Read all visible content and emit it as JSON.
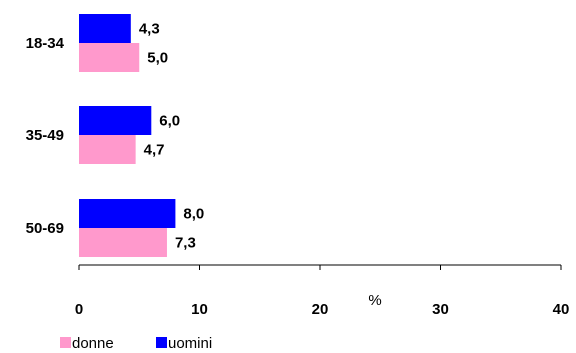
{
  "chart_data": {
    "type": "bar",
    "orientation": "horizontal",
    "categories": [
      "18-34",
      "35-49",
      "50-69"
    ],
    "series": [
      {
        "name": "uomini",
        "color": "#0000ff",
        "values": [
          4.3,
          6.0,
          8.0
        ],
        "labels": [
          "4,3",
          "6,0",
          "8,0"
        ]
      },
      {
        "name": "donne",
        "color": "#ff99cc",
        "values": [
          5.0,
          4.7,
          7.3
        ],
        "labels": [
          "5,0",
          "4,7",
          "7,3"
        ]
      }
    ],
    "xlim": [
      0,
      40
    ],
    "xticks": [
      0,
      10,
      20,
      30,
      40
    ],
    "xtick_labels": [
      "0",
      "10",
      "20",
      "30",
      "40"
    ],
    "xlabel": "%",
    "grid": false,
    "legend": {
      "position": "bottom-left",
      "entries": [
        {
          "name": "donne",
          "color": "#ff99cc"
        },
        {
          "name": "uomini",
          "color": "#0000ff"
        }
      ]
    }
  }
}
